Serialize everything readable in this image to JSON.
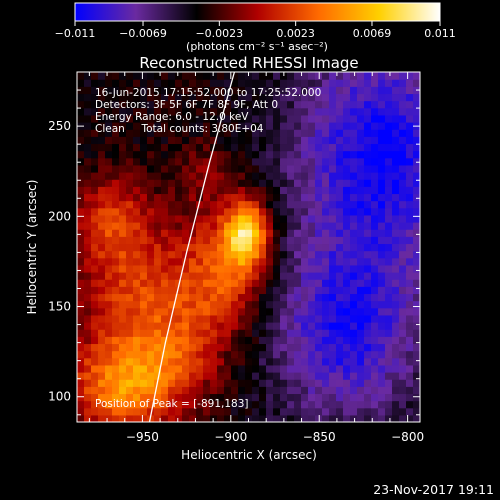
{
  "chart_data": {
    "type": "heatmap",
    "title": "Reconstructed RHESSI Image",
    "xlabel": "Heliocentric X (arcsec)",
    "ylabel": "Heliocentric Y (arcsec)",
    "xlim": [
      -987,
      -793
    ],
    "ylim": [
      86,
      280
    ],
    "x_ticks": [
      {
        "value": -950,
        "label": "−950"
      },
      {
        "value": -900,
        "label": "−900"
      },
      {
        "value": -850,
        "label": "−850"
      },
      {
        "value": -800,
        "label": "−800"
      }
    ],
    "y_ticks": [
      {
        "value": 100,
        "label": "100"
      },
      {
        "value": 150,
        "label": "150"
      },
      {
        "value": 200,
        "label": "200"
      },
      {
        "value": 250,
        "label": "250"
      }
    ],
    "colorbar": {
      "range": [
        -0.011,
        0.011
      ],
      "ticks": [
        {
          "value": -0.011,
          "label": "−0.011"
        },
        {
          "value": -0.0069,
          "label": "−0.0069"
        },
        {
          "value": -0.0023,
          "label": "−0.0023"
        },
        {
          "value": 0.0023,
          "label": "0.0023"
        },
        {
          "value": 0.0069,
          "label": "0.0069"
        },
        {
          "value": 0.011,
          "label": "0.011"
        }
      ],
      "unit_label": "(photons cm⁻² s⁻¹ asec⁻²)",
      "stops": [
        "#0000ff",
        "#6a2aa0",
        "#000000",
        "#b00000",
        "#ff6a00",
        "#ffd000",
        "#ffffff"
      ]
    },
    "info_lines": [
      "16-Jun-2015 17:15:52.000 to 17:25:52.000",
      "Detectors: 3F 5F 6F 7F 8F 9F, Att 0",
      "Energy Range: 6.0 - 12.0 keV",
      "Clean     Total counts: 3.80E+04"
    ],
    "peak_label": "Position of Peak = [-891,183]",
    "peak": {
      "x": -891,
      "y": 183
    },
    "limb_curve": [
      {
        "x": -946,
        "y": 86
      },
      {
        "x": -937,
        "y": 130
      },
      {
        "x": -925,
        "y": 180
      },
      {
        "x": -912,
        "y": 230
      },
      {
        "x": -898,
        "y": 280
      }
    ],
    "emission_sources": [
      {
        "x": -891,
        "y": 191,
        "sigma_x": 9,
        "sigma_y": 13,
        "value": 0.0105
      },
      {
        "x": -905,
        "y": 168,
        "sigma_x": 17,
        "sigma_y": 24,
        "value": 0.0062
      },
      {
        "x": -955,
        "y": 160,
        "sigma_x": 22,
        "sigma_y": 30,
        "value": 0.0052
      },
      {
        "x": -968,
        "y": 200,
        "sigma_x": 14,
        "sigma_y": 16,
        "value": 0.004
      },
      {
        "x": -962,
        "y": 105,
        "sigma_x": 22,
        "sigma_y": 18,
        "value": 0.0075
      },
      {
        "x": -930,
        "y": 125,
        "sigma_x": 18,
        "sigma_y": 20,
        "value": 0.0038
      },
      {
        "x": -915,
        "y": 225,
        "sigma_x": 12,
        "sigma_y": 12,
        "value": 0.0022
      }
    ],
    "background_level": -0.0035,
    "negative_regions": [
      {
        "x": -815,
        "y": 235,
        "sigma_x": 35,
        "sigma_y": 45,
        "value": -0.0072
      },
      {
        "x": -835,
        "y": 135,
        "sigma_x": 30,
        "sigma_y": 35,
        "value": -0.0062
      }
    ],
    "timestamp": "23-Nov-2017 19:11"
  }
}
